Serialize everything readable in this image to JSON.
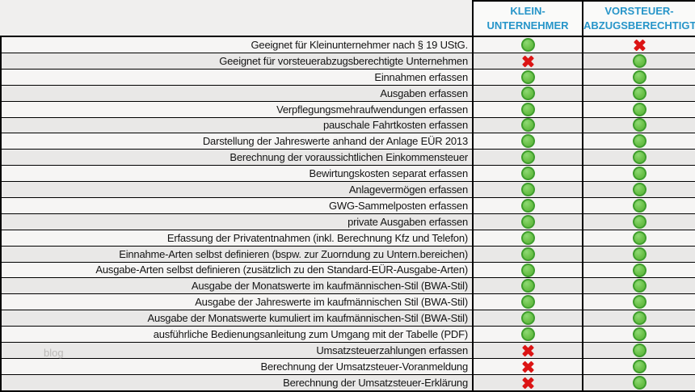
{
  "table": {
    "column_headers": [
      {
        "id": "kleinunternehmer",
        "line1": "KLEIN-",
        "line2": "UNTERNEHMER"
      },
      {
        "id": "vorsteuerabzugsberechtigt",
        "line1": "VORSTEUER-",
        "line2": "ABZUGSBERECHTIGT"
      }
    ],
    "rows": [
      {
        "feature": "Geeignet für Kleinunternehmer nach § 19 UStG.",
        "kleinunternehmer": "yes",
        "vorsteuerabzugsberechtigt": "no"
      },
      {
        "feature": "Geeignet für vorsteuerabzugsberechtigte Unternehmen",
        "kleinunternehmer": "no",
        "vorsteuerabzugsberechtigt": "yes"
      },
      {
        "feature": "Einnahmen erfassen",
        "kleinunternehmer": "yes",
        "vorsteuerabzugsberechtigt": "yes"
      },
      {
        "feature": "Ausgaben erfassen",
        "kleinunternehmer": "yes",
        "vorsteuerabzugsberechtigt": "yes"
      },
      {
        "feature": "Verpflegungsmehraufwendungen erfassen",
        "kleinunternehmer": "yes",
        "vorsteuerabzugsberechtigt": "yes"
      },
      {
        "feature": "pauschale Fahrtkosten erfassen",
        "kleinunternehmer": "yes",
        "vorsteuerabzugsberechtigt": "yes"
      },
      {
        "feature": "Darstellung der Jahreswerte anhand der Anlage EÜR 2013",
        "kleinunternehmer": "yes",
        "vorsteuerabzugsberechtigt": "yes"
      },
      {
        "feature": "Berechnung der voraussichtlichen Einkommensteuer",
        "kleinunternehmer": "yes",
        "vorsteuerabzugsberechtigt": "yes"
      },
      {
        "feature": "Bewirtungskosten separat erfassen",
        "kleinunternehmer": "yes",
        "vorsteuerabzugsberechtigt": "yes"
      },
      {
        "feature": "Anlagevermögen erfassen",
        "kleinunternehmer": "yes",
        "vorsteuerabzugsberechtigt": "yes"
      },
      {
        "feature": "GWG-Sammelposten erfassen",
        "kleinunternehmer": "yes",
        "vorsteuerabzugsberechtigt": "yes"
      },
      {
        "feature": "private Ausgaben erfassen",
        "kleinunternehmer": "yes",
        "vorsteuerabzugsberechtigt": "yes"
      },
      {
        "feature": "Erfassung der Privatentnahmen (inkl. Berechnung Kfz und Telefon)",
        "kleinunternehmer": "yes",
        "vorsteuerabzugsberechtigt": "yes"
      },
      {
        "feature": "Einnahme-Arten selbst definieren (bspw. zur Zuorndung zu Untern.bereichen)",
        "kleinunternehmer": "yes",
        "vorsteuerabzugsberechtigt": "yes"
      },
      {
        "feature": "Ausgabe-Arten selbst definieren (zusätzlich zu den Standard-EÜR-Ausgabe-Arten)",
        "kleinunternehmer": "yes",
        "vorsteuerabzugsberechtigt": "yes"
      },
      {
        "feature": "Ausgabe der Monatswerte im kaufmännischen-Stil (BWA-Stil)",
        "kleinunternehmer": "yes",
        "vorsteuerabzugsberechtigt": "yes"
      },
      {
        "feature": "Ausgabe der Jahreswerte im kaufmännischen Stil (BWA-Stil)",
        "kleinunternehmer": "yes",
        "vorsteuerabzugsberechtigt": "yes"
      },
      {
        "feature": "Ausgabe der Monatswerte kumuliert im kaufmännischen-Stil (BWA-Stil)",
        "kleinunternehmer": "yes",
        "vorsteuerabzugsberechtigt": "yes"
      },
      {
        "feature": "ausführliche Bedienungsanleitung zum Umgang mit der Tabelle (PDF)",
        "kleinunternehmer": "yes",
        "vorsteuerabzugsberechtigt": "yes"
      },
      {
        "feature": "Umsatzsteuerzahlungen erfassen",
        "kleinunternehmer": "no",
        "vorsteuerabzugsberechtigt": "yes"
      },
      {
        "feature": "Berechnung der Umsatzsteuer-Voranmeldung",
        "kleinunternehmer": "no",
        "vorsteuerabzugsberechtigt": "yes"
      },
      {
        "feature": "Berechnung der Umsatzsteuer-Erklärung",
        "kleinunternehmer": "no",
        "vorsteuerabzugsberechtigt": "yes"
      }
    ],
    "icons": {
      "yes": "green-circle",
      "no": "red-x"
    }
  },
  "watermark": "blog",
  "colors": {
    "header_text": "#2795C9",
    "yes_green": "#6CC24A",
    "yes_green_ring": "#3F9E2D",
    "no_red": "#DC1414",
    "row_light": "#F6F5F4",
    "row_dark": "#E9E8E7",
    "border": "#000000"
  }
}
